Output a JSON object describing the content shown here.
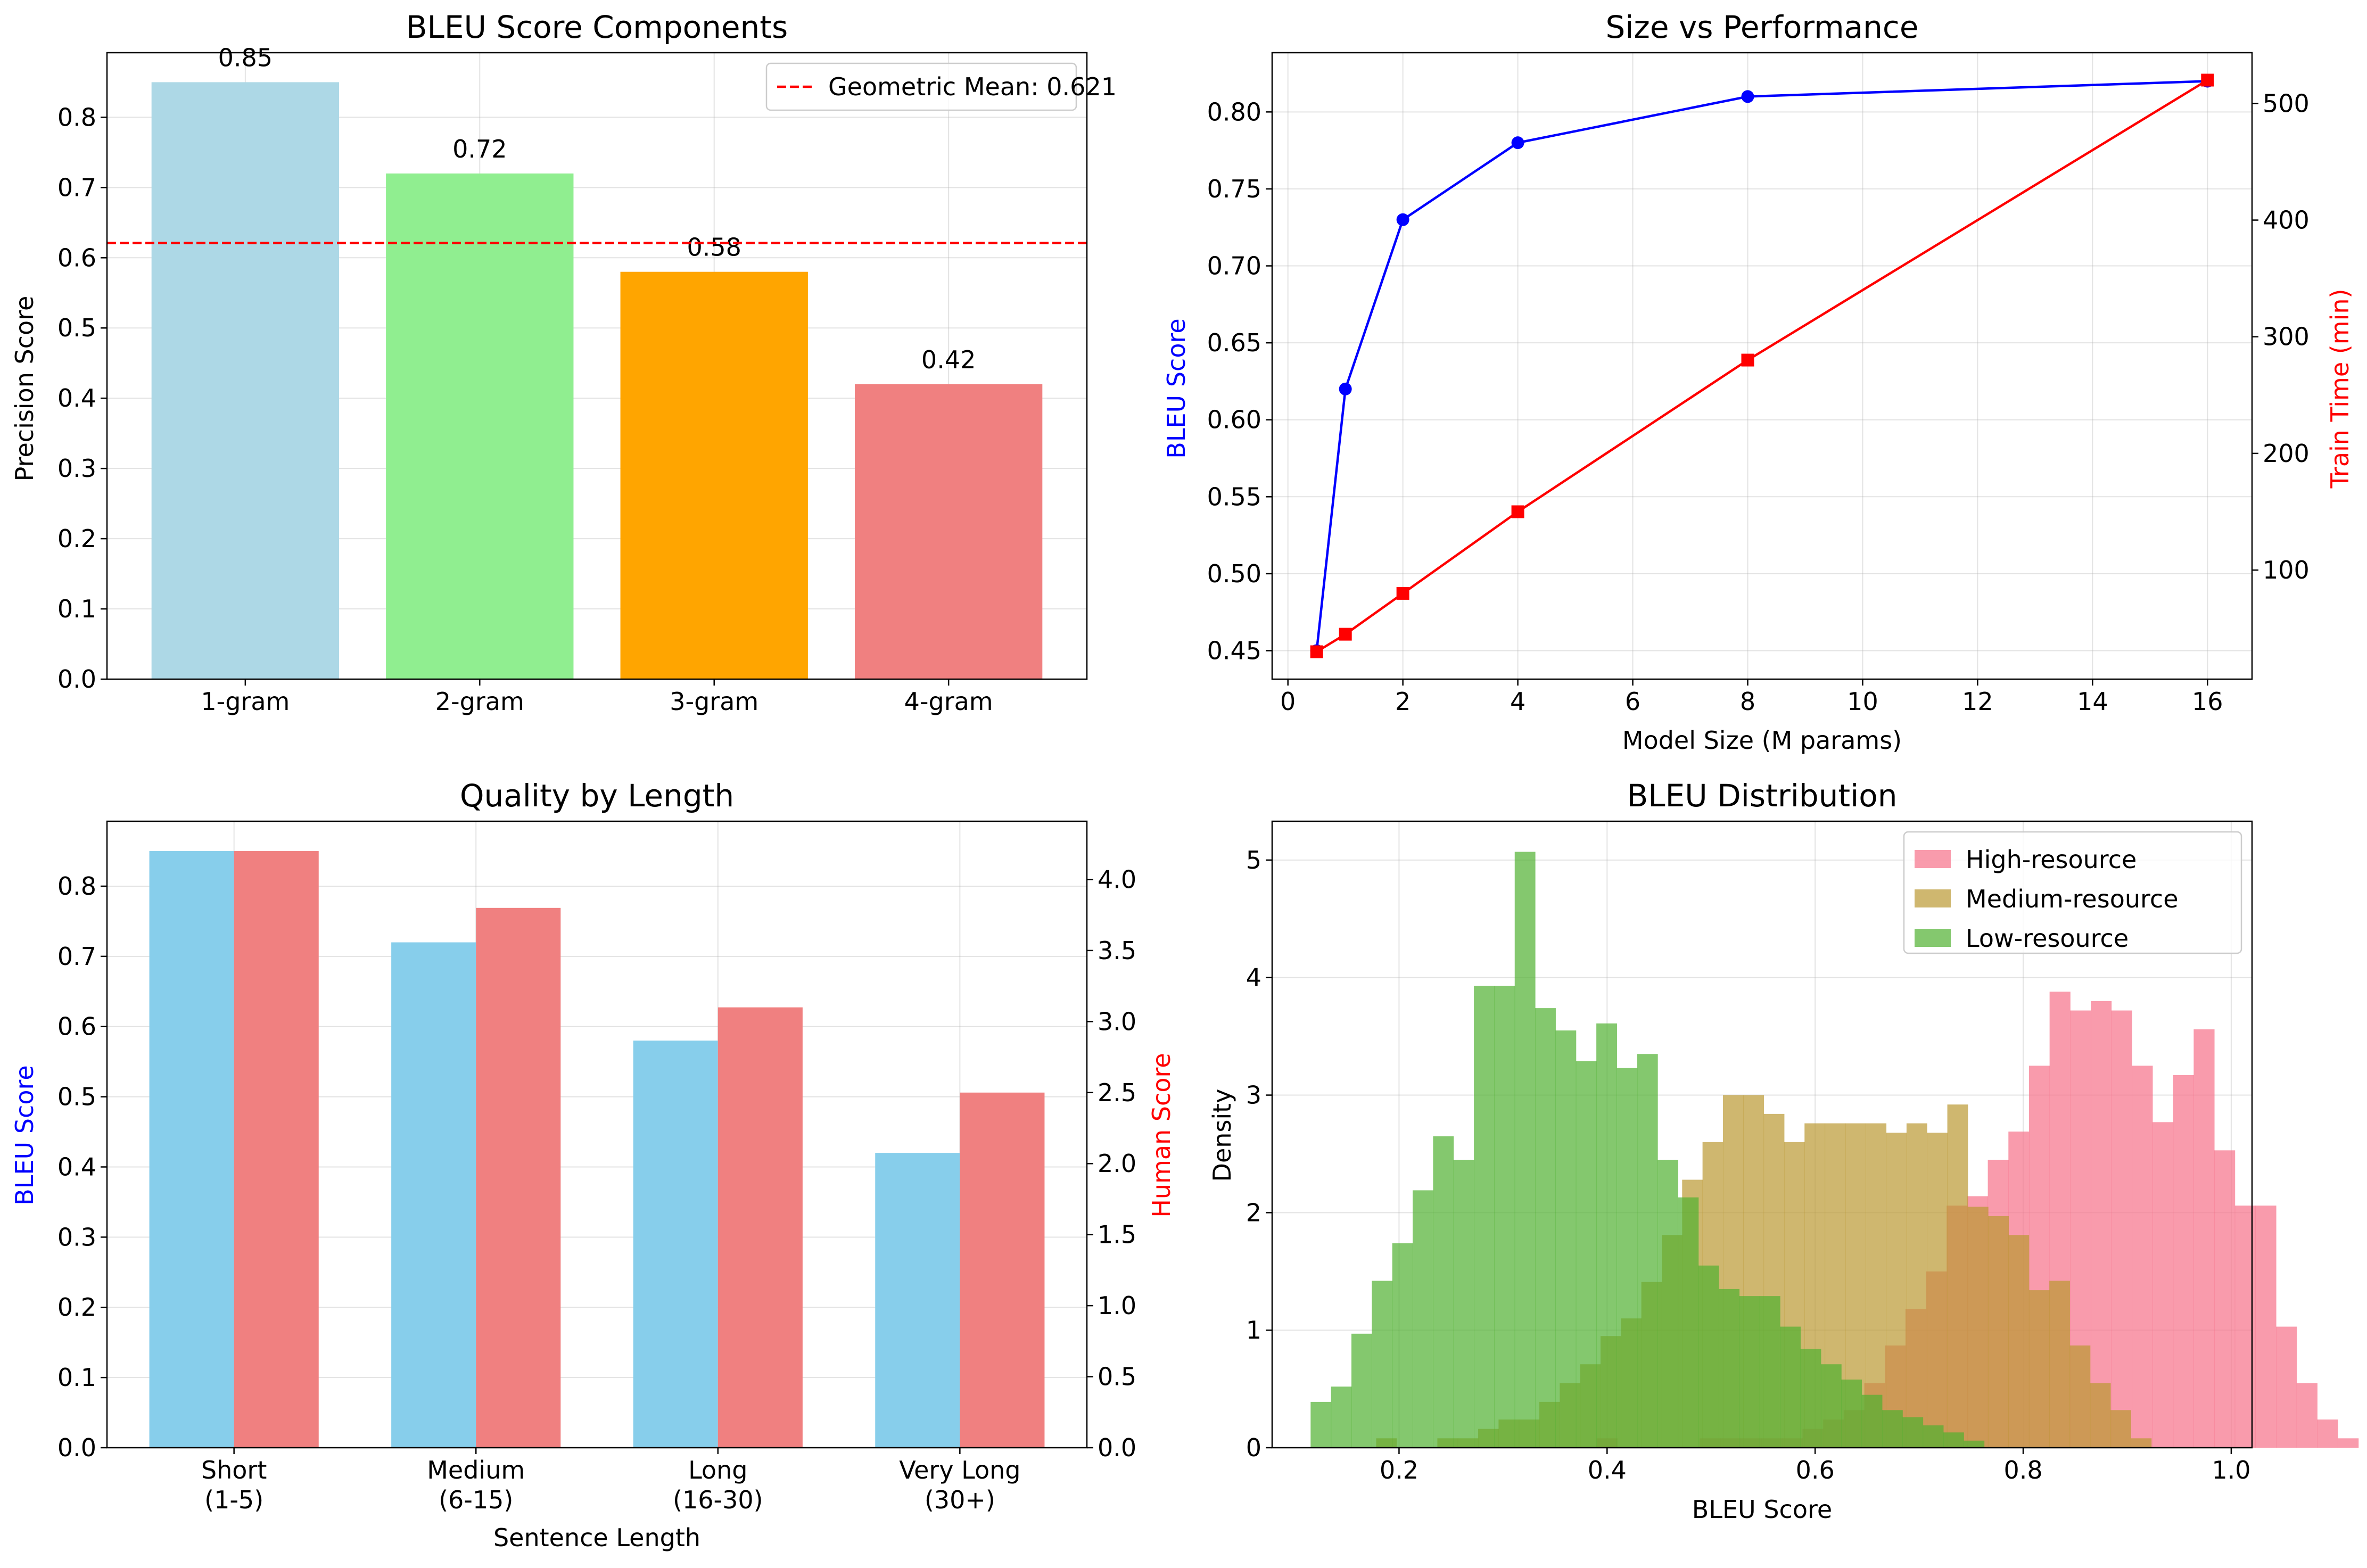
{
  "chart_data": [
    {
      "type": "bar",
      "title": "BLEU Score Components",
      "xlabel": "",
      "ylabel": "Precision Score",
      "categories": [
        "1-gram",
        "2-gram",
        "3-gram",
        "4-gram"
      ],
      "values": [
        0.85,
        0.72,
        0.58,
        0.42
      ],
      "value_labels": [
        "0.85",
        "0.72",
        "0.58",
        "0.42"
      ],
      "colors": [
        "#add8e6",
        "#90ee90",
        "#ffa500",
        "#f08080"
      ],
      "ylim": [
        0,
        0.892
      ],
      "yticks": [
        0.0,
        0.1,
        0.2,
        0.3,
        0.4,
        0.5,
        0.6,
        0.7,
        0.8
      ],
      "ytick_labels": [
        "0.0",
        "0.1",
        "0.2",
        "0.3",
        "0.4",
        "0.5",
        "0.6",
        "0.7",
        "0.8"
      ],
      "reference_line": {
        "value": 0.621,
        "label": "Geometric Mean: 0.621",
        "color": "#ff0000",
        "style": "dashed"
      },
      "legend": {
        "placement": "top-right",
        "entries": [
          "Geometric Mean: 0.621"
        ]
      },
      "grid": true
    },
    {
      "type": "line",
      "title": "Size vs Performance",
      "xlabel": "Model Size (M params)",
      "ylabel": "BLEU Score",
      "y2label": "Train Time (min)",
      "x": [
        0.5,
        1,
        2,
        4,
        8,
        16
      ],
      "xlim": [
        -0.275,
        16.775
      ],
      "xticks": [
        0,
        2,
        4,
        6,
        8,
        10,
        12,
        14,
        16
      ],
      "xtick_labels": [
        "0",
        "2",
        "4",
        "6",
        "8",
        "10",
        "12",
        "14",
        "16"
      ],
      "ylim": [
        0.4315,
        0.8385
      ],
      "yticks": [
        0.45,
        0.5,
        0.55,
        0.6,
        0.65,
        0.7,
        0.75,
        0.8
      ],
      "ytick_labels": [
        "0.45",
        "0.50",
        "0.55",
        "0.60",
        "0.65",
        "0.70",
        "0.75",
        "0.80"
      ],
      "y2lim": [
        6.5,
        543.5
      ],
      "y2ticks": [
        100,
        200,
        300,
        400,
        500
      ],
      "y2tick_labels": [
        "100",
        "200",
        "300",
        "400",
        "500"
      ],
      "series": [
        {
          "values": [
            0.45,
            0.62,
            0.73,
            0.78,
            0.81,
            0.82
          ],
          "color": "#0000ff",
          "marker": "circle",
          "axis": "left"
        },
        {
          "values": [
            30,
            45,
            80,
            150,
            280,
            520
          ],
          "color": "#ff0000",
          "marker": "square",
          "axis": "right"
        }
      ],
      "grid": true
    },
    {
      "type": "bar",
      "title": "Quality by Length",
      "xlabel": "Sentence Length",
      "ylabel": "BLEU Score",
      "y2label": "Human Score",
      "categories": [
        [
          "Short",
          "(1-5)"
        ],
        [
          "Medium",
          "(6-15)"
        ],
        [
          "Long",
          "(16-30)"
        ],
        [
          "Very Long",
          "(30+)"
        ]
      ],
      "ylim": [
        0,
        0.8925
      ],
      "yticks": [
        0.0,
        0.1,
        0.2,
        0.3,
        0.4,
        0.5,
        0.6,
        0.7,
        0.8
      ],
      "ytick_labels": [
        "0.0",
        "0.1",
        "0.2",
        "0.3",
        "0.4",
        "0.5",
        "0.6",
        "0.7",
        "0.8"
      ],
      "y2lim": [
        0,
        4.41
      ],
      "y2ticks": [
        0.0,
        0.5,
        1.0,
        1.5,
        2.0,
        2.5,
        3.0,
        3.5,
        4.0
      ],
      "y2tick_labels": [
        "0.0",
        "0.5",
        "1.0",
        "1.5",
        "2.0",
        "2.5",
        "3.0",
        "3.5",
        "4.0"
      ],
      "series": [
        {
          "values": [
            0.85,
            0.72,
            0.58,
            0.42
          ],
          "color": "#87ceeb",
          "axis": "left"
        },
        {
          "values": [
            4.2,
            3.8,
            3.1,
            2.5
          ],
          "color": "#f08080",
          "axis": "right"
        }
      ],
      "grid": true
    },
    {
      "type": "histogram",
      "title": "BLEU Distribution",
      "xlabel": "BLEU Score",
      "ylabel": "Density",
      "xlim": [
        0.078,
        1.02
      ],
      "xticks": [
        0.2,
        0.4,
        0.6,
        0.8,
        1.0
      ],
      "xtick_labels": [
        "0.2",
        "0.4",
        "0.6",
        "0.8",
        "1.0"
      ],
      "ylim": [
        0,
        5.33
      ],
      "yticks": [
        0,
        1,
        2,
        3,
        4,
        5
      ],
      "ytick_labels": [
        "0",
        "1",
        "2",
        "3",
        "4",
        "5"
      ],
      "legend": {
        "placement": "top-right",
        "entries": [
          "High-resource",
          "Medium-resource",
          "Low-resource"
        ]
      },
      "series": [
        {
          "name": "High-resource",
          "color": "#f77189",
          "opacity": 0.7,
          "bin_start": 0.39,
          "bin_width": 0.01979,
          "density": [
            0.08,
            0,
            0,
            0,
            0,
            0.08,
            0.08,
            0.08,
            0.08,
            0.08,
            0.16,
            0.24,
            0.32,
            0.55,
            0.87,
            1.18,
            1.5,
            2.06,
            2.14,
            2.45,
            2.69,
            3.25,
            3.88,
            3.72,
            3.8,
            3.72,
            3.25,
            2.77,
            3.17,
            3.56,
            2.53,
            2.06,
            2.06,
            1.03,
            0.55,
            0.24,
            0.08
          ]
        },
        {
          "name": "Medium-resource",
          "color": "#bb9832",
          "opacity": 0.7,
          "bin_start": 0.178,
          "bin_width": 0.01961,
          "density": [
            0.08,
            0,
            0,
            0.08,
            0.08,
            0.16,
            0.24,
            0.24,
            0.39,
            0.55,
            0.71,
            0.95,
            1.1,
            1.41,
            1.81,
            2.28,
            2.6,
            3.0,
            3.0,
            2.84,
            2.6,
            2.76,
            2.76,
            2.76,
            2.76,
            2.68,
            2.76,
            2.68,
            2.92,
            2.05,
            1.97,
            1.81,
            1.34,
            1.42,
            0.87,
            0.55,
            0.32,
            0.08
          ]
        },
        {
          "name": "Low-resource",
          "color": "#50b131",
          "opacity": 0.7,
          "bin_start": 0.115,
          "bin_width": 0.01962,
          "density": [
            0.39,
            0.52,
            0.97,
            1.42,
            1.74,
            2.19,
            2.65,
            2.45,
            3.93,
            3.93,
            5.07,
            3.74,
            3.55,
            3.29,
            3.61,
            3.23,
            3.35,
            2.45,
            2.13,
            1.55,
            1.35,
            1.29,
            1.29,
            1.03,
            0.84,
            0.71,
            0.58,
            0.45,
            0.32,
            0.26,
            0.19,
            0.13,
            0.06
          ]
        }
      ],
      "grid": true
    }
  ]
}
